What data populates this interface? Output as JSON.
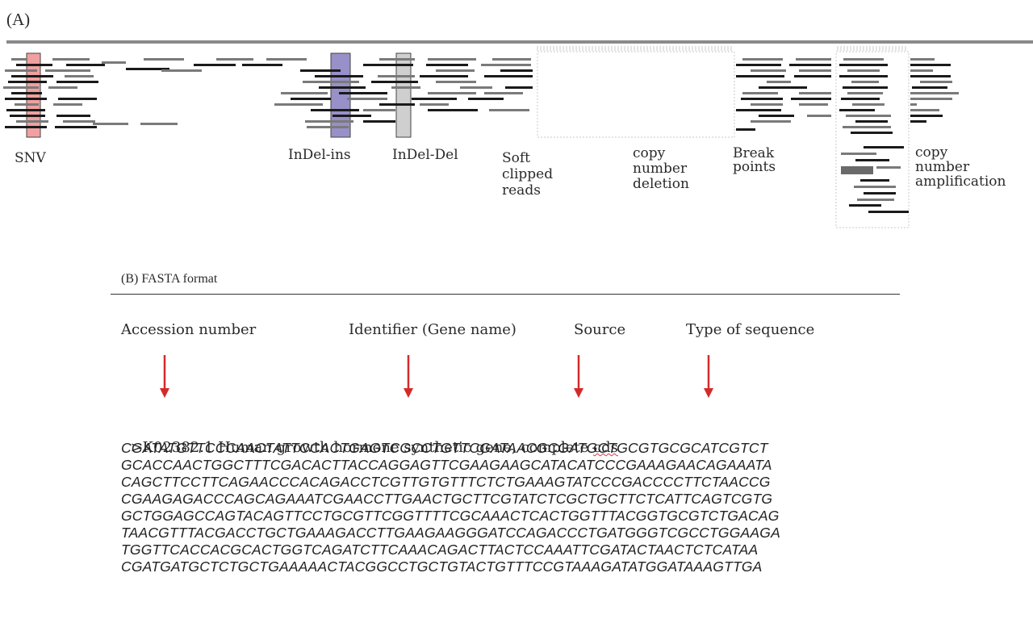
{
  "panel_a": {
    "label": "(A)",
    "labels": {
      "snv": "SNV",
      "indel_ins": "InDel-ins",
      "indel_del": "InDel-Del",
      "soft_clipped": "Soft\nclipped\nreads",
      "cn_deletion": "copy\nnumber\ndeletion",
      "break_points": "Break\npoints",
      "cn_amplification": "copy\nnumber\namplification"
    },
    "colors": {
      "reference": "#8a8a8a",
      "read_dark": "#1a1a1a",
      "read_gray": "#7a7a7a",
      "snv_highlight": "#f0a0a0",
      "ins_highlight": "#9890c8",
      "del_highlight": "#cfcfcf"
    }
  },
  "panel_b": {
    "title": "(B) FASTA format",
    "annotations": {
      "accession": "Accession number",
      "identifier": "Identifier (Gene name)",
      "source": "Source",
      "type": "Type of sequence"
    },
    "arrow_color": "#d42a2a",
    "header_main": ">K02382.1 Human growth hormone synthetic gene, complete ",
    "header_flagged": "cds",
    "sequence": [
      "CGATATGTTCCCAACTATTCCACTGAGTCGCCTGTTCGATAACGCGATGCTGCGTGCGCATCGTCT",
      "GCACCAACTGGCTTTCGACACTTACCAGGAGTTCGAAGAAGCATACATCCCGAAAGAACAGAAATA",
      "CAGCTTCCTTCAGAACCCACAGACCTCGTTGTGTTTCTCTGAAAGTATCCCGACCCCTTCTAACCG",
      "CGAAGAGACCCAGCAGAAATCGAACCTTGAACTGCTTCGTATCTCGCTGCTTCTCATTCAGTCGTG",
      "GCTGGAGCCAGTACAGTTCCTGCGTTCGGTTTTCGCAAACTCACTGGTTTACGGTGCGTCTGACAG",
      "TAACGTTTACGACCTGCTGAAAGACCTTGAAGAAGGGATCCAGACCCTGATGGGTCGCCTGGAAGA",
      "TGGTTCACCACGCACTGGTCAGATCTTCAAACAGACTTACTCCAAATTCGATACTAACTCTCATAA",
      "CGATGATGCTCTGCTGAAAAACTACGGCCTGCTGTACTGTTTCCGTAAAGATATGGATAAAGTTGA"
    ]
  }
}
